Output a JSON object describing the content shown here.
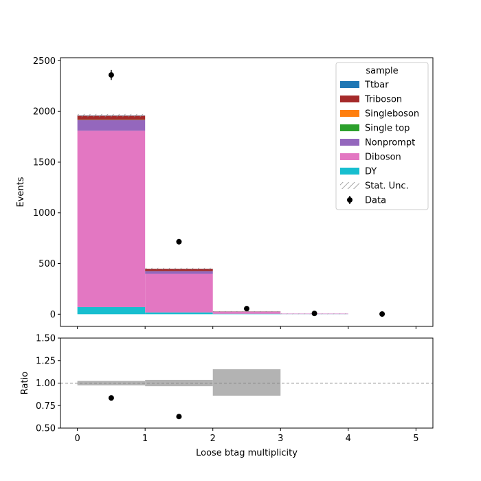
{
  "chart_data": [
    {
      "type": "bar",
      "stacked": true,
      "bins": [
        [
          0,
          1
        ],
        [
          1,
          2
        ],
        [
          2,
          3
        ],
        [
          3,
          4
        ],
        [
          4,
          5
        ]
      ],
      "ylabel": "Events",
      "xlim": [
        -0.25,
        5.25
      ],
      "ylim": [
        -120,
        2530
      ],
      "yticks": [
        0,
        500,
        1000,
        1500,
        2000,
        2500
      ],
      "grid": false,
      "legend": {
        "title": "sample",
        "placement": "top-right",
        "entries": [
          "Ttbar",
          "Triboson",
          "Singleboson",
          "Single top",
          "Nonprompt",
          "Diboson",
          "DY",
          "Stat. Unc.",
          "Data"
        ]
      },
      "series": [
        {
          "name": "DY",
          "color": "#17becf",
          "values": [
            70,
            18,
            4,
            1,
            0
          ]
        },
        {
          "name": "Diboson",
          "color": "#e377c2",
          "values": [
            1740,
            380,
            18,
            4,
            0
          ]
        },
        {
          "name": "Nonprompt",
          "color": "#9467bd",
          "values": [
            105,
            27,
            3,
            1,
            0
          ]
        },
        {
          "name": "Single top",
          "color": "#2ca02c",
          "values": [
            2,
            1,
            0,
            0,
            0
          ]
        },
        {
          "name": "Singleboson",
          "color": "#ff7f0e",
          "values": [
            1,
            0,
            0,
            0,
            0
          ]
        },
        {
          "name": "Triboson",
          "color": "#a52a2a",
          "values": [
            40,
            22,
            2,
            0,
            0
          ]
        },
        {
          "name": "Ttbar",
          "color": "#1f77b4",
          "values": [
            2,
            1,
            0,
            0,
            0
          ]
        }
      ],
      "stat_unc": [
        15,
        8,
        3,
        1,
        0
      ],
      "data": {
        "name": "Data",
        "x": [
          0.5,
          1.5,
          2.5,
          3.5,
          4.5
        ],
        "y": [
          2360,
          715,
          55,
          8,
          2
        ],
        "yerr": [
          49,
          27,
          7,
          3,
          1.4
        ]
      }
    },
    {
      "type": "scatter",
      "xlabel": "Loose btag multiplicity",
      "ylabel": "Ratio",
      "xlim": [
        -0.25,
        5.25
      ],
      "ylim": [
        0.5,
        1.5
      ],
      "xticks": [
        0,
        1,
        2,
        3,
        4,
        5
      ],
      "yticks": [
        "0.50",
        "0.75",
        "1.00",
        "1.25",
        "1.50"
      ],
      "reference_line": 1.0,
      "unc_band": [
        [
          0.975,
          1.025
        ],
        [
          0.965,
          1.035
        ],
        [
          0.86,
          1.155
        ]
      ],
      "points": {
        "x": [
          0.5,
          1.5
        ],
        "y": [
          0.835,
          0.628
        ]
      }
    }
  ]
}
